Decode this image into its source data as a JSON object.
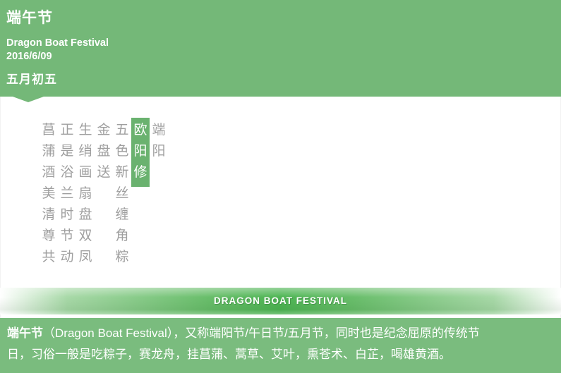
{
  "theme": {
    "header_green": "#74b878",
    "footer_green": "#7abc7e",
    "highlight_green": "#6ab26f",
    "banner_center_green": "#4eb554",
    "poem_text_gray": "#9f9f9f",
    "text_white": "#ffffff"
  },
  "header": {
    "title": "端午节",
    "subtitle": "Dragon Boat Festival",
    "date": "2016/6/09",
    "lunar_date": "五月初五"
  },
  "poem": {
    "columns_right_to_left": [
      {
        "text": "端阳",
        "highlight": false
      },
      {
        "text": "欧阳修",
        "highlight": true
      },
      {
        "text": "五色新丝缠角粽",
        "highlight": false
      },
      {
        "text": "金盘送",
        "highlight": false
      },
      {
        "text": "生绡画扇盘双凤",
        "highlight": false
      },
      {
        "text": "正是浴兰时节动",
        "highlight": false
      },
      {
        "text": "菖蒲酒美清尊共",
        "highlight": false
      }
    ]
  },
  "banner": {
    "label": "DRAGON BOAT FESTIVAL"
  },
  "footer": {
    "bold_lead": "端午节",
    "line1_rest": "（Dragon Boat Festival），又称端阳节/午日节/五月节，同时也是纪念屈原的传统节",
    "line2": "日，习俗一般是吃粽子，赛龙舟，挂菖蒲、蒿草、艾叶，熏苍术、白芷，喝雄黄酒。"
  }
}
